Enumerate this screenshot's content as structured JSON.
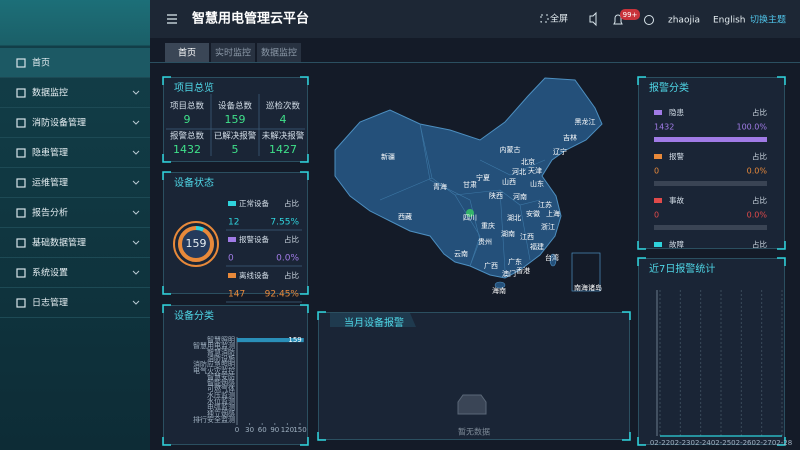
{
  "sidebar": {
    "menu": [
      "首页",
      "数据监控",
      "消防设备管理",
      "隐患管理",
      "运维管理",
      "报告分析",
      "基础数据管理",
      "系统设置",
      "日志管理"
    ]
  },
  "header": {
    "title": "智慧用电管理云平台",
    "fullscreen": "全屏",
    "badge": "99+",
    "user": "zhaojia",
    "language": "English",
    "theme": "切换主题"
  },
  "tabs": [
    "首页",
    "实时监控",
    "数据监控"
  ],
  "overview": {
    "title": "项目总览",
    "items": [
      {
        "label": "项目总数",
        "value": 9
      },
      {
        "label": "设备总数",
        "value": 159
      },
      {
        "label": "巡检次数",
        "value": 4
      },
      {
        "label": "报警总数",
        "value": 1432
      },
      {
        "label": "已解决报警",
        "value": 5
      },
      {
        "label": "未解决报警",
        "value": 1427
      }
    ]
  },
  "device_status": {
    "title": "设备状态",
    "total": 159,
    "share_label": "占比",
    "items": [
      {
        "name": "正常设备",
        "color": "#2fd3dc",
        "count": 12,
        "percent": "7.55%"
      },
      {
        "name": "报警设备",
        "color": "#a07be6",
        "count": 0,
        "percent": "0.0%"
      },
      {
        "name": "离线设备",
        "color": "#e8893a",
        "count": 147,
        "percent": "92.45%"
      }
    ]
  },
  "map": {
    "labels": [
      "新疆",
      "西藏",
      "青海",
      "甘肃",
      "内蒙古",
      "黑龙江",
      "吉林",
      "辽宁",
      "北京",
      "天津",
      "河北",
      "山西",
      "山东",
      "宁夏",
      "陕西",
      "河南",
      "江苏",
      "安徽",
      "上海",
      "四川",
      "重庆",
      "湖北",
      "浙江",
      "湖南",
      "江西",
      "贵州",
      "云南",
      "福建",
      "广西",
      "广东",
      "台湾",
      "香港",
      "澳门",
      "海南",
      "南海诸岛"
    ]
  },
  "alarm_category": {
    "title": "报警分类",
    "share_label": "占比",
    "items": [
      {
        "name": "隐患",
        "color": "#a07be6",
        "count": 1432,
        "percent": "100.0%"
      },
      {
        "name": "报警",
        "color": "#e8893a",
        "count": 0,
        "percent": "0.0%"
      },
      {
        "name": "事故",
        "color": "#e04a4a",
        "count": 0,
        "percent": "0.0%"
      },
      {
        "name": "故障",
        "color": "#2fd3dc"
      }
    ]
  },
  "monthly_alarm": {
    "title": "当月设备报警",
    "empty": "暂无数据"
  },
  "chart_data": [
    {
      "type": "bar",
      "title": "设备分类",
      "orientation": "horizontal",
      "categories": [
        "智慧照明",
        "智慧用电监测",
        "智慧消防",
        "消防设施",
        "消防应急照明",
        "电气火灾监控",
        "智慧安防",
        "智能烟感",
        "可燃气体",
        "水压监测",
        "水位监测",
        "电弧监测",
        "独立烟感",
        "排行安全监测"
      ],
      "values": [
        159,
        0,
        0,
        0,
        0,
        0,
        0,
        0,
        0,
        0,
        0,
        0,
        0,
        0
      ],
      "color": "#2a8fb8",
      "xlim": [
        0,
        150
      ],
      "xticks": [
        0,
        30,
        60,
        90,
        120,
        150
      ]
    },
    {
      "type": "line",
      "title": "近7日报警统计",
      "x": [
        "02-22",
        "02-23",
        "02-24",
        "02-25",
        "02-26",
        "02-27",
        "02-28"
      ],
      "values": [
        0,
        0,
        0,
        0,
        0,
        0,
        0
      ],
      "color": "#2fd3dc",
      "ylim": [
        0,
        1
      ],
      "grid": true
    }
  ]
}
